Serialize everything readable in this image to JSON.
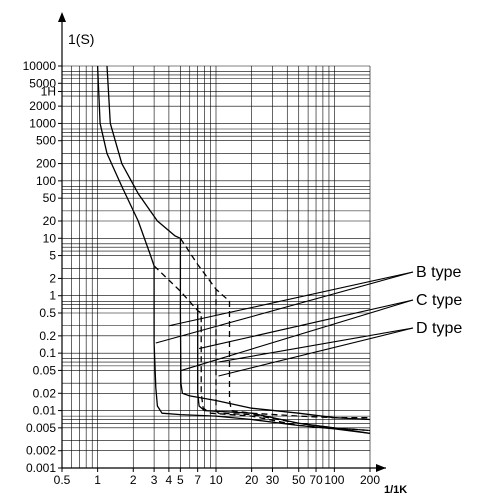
{
  "chart_data": {
    "type": "line",
    "ylabel": "1(S)",
    "xlabel": "1/1K",
    "x_scale": "log",
    "y_scale": "log",
    "xlim": [
      0.5,
      200
    ],
    "ylim": [
      0.001,
      10000
    ],
    "grid": true,
    "legend": "right",
    "x_ticks": [
      {
        "v": 0.5,
        "label": "0.5"
      },
      {
        "v": 1,
        "label": "1"
      },
      {
        "v": 2,
        "label": "2"
      },
      {
        "v": 3,
        "label": "3"
      },
      {
        "v": 4,
        "label": "4"
      },
      {
        "v": 5,
        "label": "5"
      },
      {
        "v": 7,
        "label": "7"
      },
      {
        "v": 10,
        "label": "10"
      },
      {
        "v": 20,
        "label": "20"
      },
      {
        "v": 30,
        "label": "30"
      },
      {
        "v": 50,
        "label": "50"
      },
      {
        "v": 70,
        "label": "70"
      },
      {
        "v": 100,
        "label": "100"
      },
      {
        "v": 200,
        "label": "200"
      }
    ],
    "y_ticks": [
      {
        "v": 10000,
        "label": "10000"
      },
      {
        "v": 5000,
        "label": "5000"
      },
      {
        "v": 3600,
        "label": "1H"
      },
      {
        "v": 2000,
        "label": "2000"
      },
      {
        "v": 1000,
        "label": "1000"
      },
      {
        "v": 500,
        "label": "500"
      },
      {
        "v": 200,
        "label": "200"
      },
      {
        "v": 100,
        "label": "100"
      },
      {
        "v": 50,
        "label": "50"
      },
      {
        "v": 20,
        "label": "20"
      },
      {
        "v": 10,
        "label": "10"
      },
      {
        "v": 5,
        "label": "5"
      },
      {
        "v": 2,
        "label": "2"
      },
      {
        "v": 1,
        "label": "1"
      },
      {
        "v": 0.5,
        "label": "0.5"
      },
      {
        "v": 0.2,
        "label": "0.2"
      },
      {
        "v": 0.1,
        "label": "0.1"
      },
      {
        "v": 0.05,
        "label": "0.05"
      },
      {
        "v": 0.02,
        "label": "0.02"
      },
      {
        "v": 0.01,
        "label": "0.01"
      },
      {
        "v": 0.005,
        "label": "0.005"
      },
      {
        "v": 0.002,
        "label": "0.002"
      },
      {
        "v": 0.001,
        "label": "0.001"
      }
    ],
    "y_gridlines": [
      10000,
      5000,
      3600,
      2000,
      1000,
      500,
      200,
      100,
      50,
      20,
      10,
      5,
      2,
      1,
      0.5,
      0.2,
      0.1,
      0.05,
      0.02,
      0.01,
      0.005,
      0.002,
      0.001,
      7000,
      3000,
      700,
      300,
      70,
      30,
      7,
      3,
      0.7,
      0.3,
      0.07,
      0.03,
      0.007,
      0.003,
      8000,
      6000,
      800,
      600,
      80,
      60,
      8,
      6,
      0.8,
      0.6,
      0.08,
      0.06,
      0.008,
      0.006
    ],
    "series": [
      {
        "name": "B type",
        "style": "solid",
        "points": [
          [
            1.0,
            10000
          ],
          [
            1.05,
            1000
          ],
          [
            1.2,
            300
          ],
          [
            1.6,
            80
          ],
          [
            2.2,
            20
          ],
          [
            2.8,
            5
          ],
          [
            3.0,
            3.3
          ],
          [
            3.0,
            0.15
          ],
          [
            3.1,
            0.025
          ],
          [
            3.2,
            0.012
          ],
          [
            3.5,
            0.009
          ],
          [
            5,
            0.0085
          ],
          [
            10,
            0.008
          ],
          [
            20,
            0.007
          ],
          [
            50,
            0.0055
          ],
          [
            100,
            0.0048
          ],
          [
            200,
            0.004
          ]
        ]
      },
      {
        "name": "",
        "style": "dashed",
        "points": [
          [
            3.0,
            3.3
          ],
          [
            5,
            1.2
          ],
          [
            7,
            0.55
          ],
          [
            7.5,
            0.5
          ],
          [
            7.5,
            0.02
          ],
          [
            7.8,
            0.011
          ],
          [
            9,
            0.009
          ],
          [
            20,
            0.008
          ],
          [
            50,
            0.0055
          ],
          [
            100,
            0.005
          ],
          [
            200,
            0.0045
          ]
        ]
      },
      {
        "name": "C type",
        "style": "solid",
        "points": [
          [
            1.2,
            10000
          ],
          [
            1.28,
            1000
          ],
          [
            1.6,
            200
          ],
          [
            2.2,
            60
          ],
          [
            3.2,
            20
          ],
          [
            4.5,
            11
          ],
          [
            5,
            10
          ],
          [
            5,
            0.5
          ],
          [
            5.05,
            0.03
          ],
          [
            5.2,
            0.02
          ],
          [
            6,
            0.018
          ],
          [
            10,
            0.015
          ],
          [
            20,
            0.011
          ],
          [
            50,
            0.009
          ],
          [
            100,
            0.0075
          ],
          [
            200,
            0.007
          ]
        ]
      },
      {
        "name": "",
        "style": "dashed",
        "points": [
          [
            5,
            10
          ],
          [
            7,
            3.5
          ],
          [
            10,
            1.3
          ],
          [
            13,
            0.8
          ],
          [
            13,
            0.015
          ],
          [
            13.5,
            0.01
          ],
          [
            20,
            0.009
          ],
          [
            50,
            0.008
          ],
          [
            100,
            0.0075
          ],
          [
            200,
            0.0075
          ]
        ]
      },
      {
        "name": "D type",
        "style": "solid",
        "points": [
          [
            7,
            0.7
          ],
          [
            7,
            0.02
          ],
          [
            7.2,
            0.012
          ],
          [
            8,
            0.01
          ],
          [
            20,
            0.009
          ],
          [
            50,
            0.006
          ],
          [
            100,
            0.005
          ],
          [
            200,
            0.004
          ]
        ]
      },
      {
        "name": "",
        "style": "dashed",
        "points": [
          [
            10,
            1.3
          ],
          [
            10,
            0.01
          ],
          [
            10.5,
            0.009
          ],
          [
            20,
            0.0085
          ],
          [
            50,
            0.006
          ],
          [
            100,
            0.005
          ],
          [
            200,
            0.0045
          ]
        ]
      }
    ],
    "legend_entries": [
      {
        "label": "B type",
        "targets": [
          [
            4.0,
            0.3
          ],
          [
            3.1,
            0.15
          ]
        ]
      },
      {
        "label": "C type",
        "targets": [
          [
            7.2,
            0.12
          ],
          [
            5.1,
            0.05
          ]
        ]
      },
      {
        "label": "D type",
        "targets": [
          [
            10.5,
            0.07
          ],
          [
            10.5,
            0.04
          ]
        ]
      }
    ],
    "colors": {
      "line": "#000000",
      "grid": "#000000",
      "background": "#ffffff"
    }
  }
}
